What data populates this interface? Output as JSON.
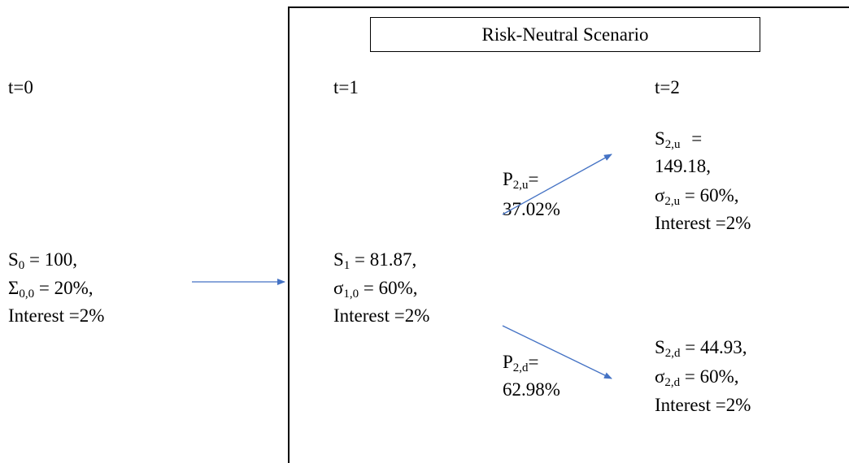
{
  "title": "Risk-Neutral Scenario",
  "times": {
    "t0": "t=0",
    "t1": "t=1",
    "t2": "t=2"
  },
  "node_t0": {
    "s_main": "S",
    "s_sub": "0",
    "s_rest": " = 100,",
    "v_main": "Σ",
    "v_sub": "0,0",
    "v_rest": " = 20%,",
    "interest": "Interest =2%"
  },
  "node_t1": {
    "s_main": "S",
    "s_sub": "1",
    "s_rest": " = 81.87,",
    "v_main": "σ",
    "v_sub": "1,0",
    "v_rest": " = 60%,",
    "interest": "Interest =2%"
  },
  "node_up": {
    "s_main": "S",
    "s_sub": "2,u",
    "s_rest": " =",
    "s_value": "149.18,",
    "v_main": "σ",
    "v_sub": "2,u",
    "v_rest": " = 60%,",
    "interest": "Interest =2%"
  },
  "node_down": {
    "s_main": "S",
    "s_sub": "2,d",
    "s_rest": " = 44.93,",
    "v_main": "σ",
    "v_sub": "2,d",
    "v_rest": " = 60%,",
    "interest": "Interest =2%"
  },
  "prob_up": {
    "main": "P",
    "sub": "2,u",
    "rest": "=",
    "value": "37.02%"
  },
  "prob_down": {
    "main": "P",
    "sub": "2,d",
    "rest": "=",
    "value": "62.98%"
  },
  "colors": {
    "arrow": "#4472C4",
    "text": "#000000",
    "frame": "#000000"
  }
}
